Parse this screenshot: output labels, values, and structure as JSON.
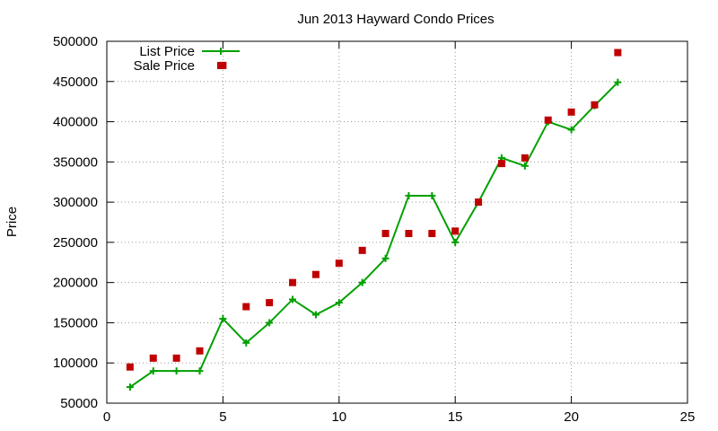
{
  "chart_data": {
    "type": "line",
    "title": "Jun 2013 Hayward Condo Prices",
    "xlabel": "",
    "ylabel": "Price",
    "xlim": [
      0,
      25
    ],
    "ylim": [
      50000,
      500000
    ],
    "xticks": [
      0,
      5,
      10,
      15,
      20,
      25
    ],
    "yticks": [
      50000,
      100000,
      150000,
      200000,
      250000,
      300000,
      350000,
      400000,
      450000,
      500000
    ],
    "grid": true,
    "legend_position": "top-left",
    "series": [
      {
        "name": "List Price",
        "style": "line-with-plus-markers",
        "color": "#00a000",
        "x": [
          1,
          2,
          3,
          4,
          5,
          6,
          7,
          8,
          9,
          10,
          11,
          12,
          13,
          14,
          15,
          16,
          17,
          18,
          19,
          20,
          21,
          22
        ],
        "y": [
          70000,
          90000,
          90000,
          90000,
          155000,
          125000,
          150000,
          179000,
          160000,
          175000,
          200000,
          230000,
          308000,
          308000,
          250000,
          300000,
          355000,
          345000,
          400000,
          390000,
          420000,
          449000
        ]
      },
      {
        "name": "Sale Price",
        "style": "square-markers",
        "color": "#c00000",
        "x": [
          1,
          2,
          3,
          4,
          5,
          6,
          7,
          8,
          9,
          10,
          11,
          12,
          13,
          14,
          15,
          16,
          17,
          18,
          19,
          20,
          21,
          22
        ],
        "y": [
          95000,
          106000,
          106000,
          115000,
          470000,
          170000,
          175000,
          200000,
          210000,
          224000,
          240000,
          261000,
          261000,
          261000,
          264000,
          300000,
          348000,
          355000,
          402000,
          412000,
          421000,
          486000
        ]
      }
    ]
  }
}
